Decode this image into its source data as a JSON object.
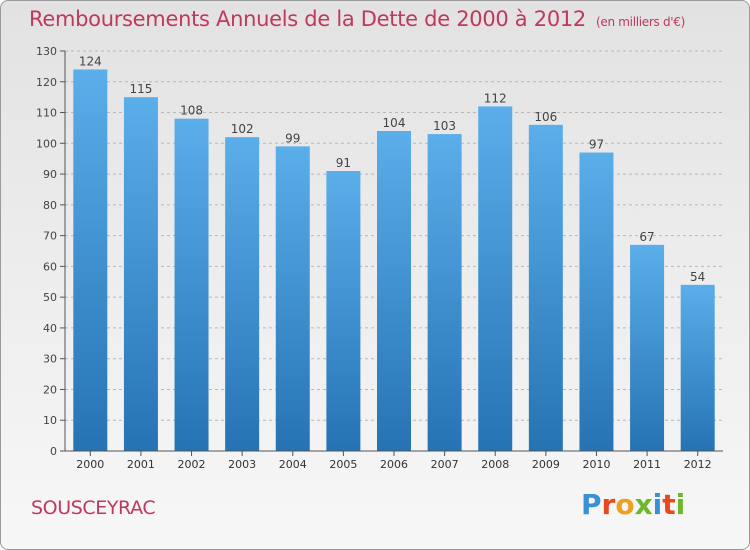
{
  "title": "Remboursements Annuels de la Dette de 2000 à 2012",
  "unit": "(en milliers d'€)",
  "commune": "SOUSCEYRAC",
  "logo": {
    "letters": [
      "P",
      "r",
      "o",
      "x",
      "i",
      "t",
      "i"
    ],
    "colors": [
      "#3b8fd4",
      "#e84a1c",
      "#f0a020",
      "#6cb82a",
      "#3b8fd4",
      "#e84a1c",
      "#6cb82a"
    ]
  },
  "colors": {
    "bar_top": "#5aaeea",
    "bar_bottom": "#2673b4",
    "title": "#c0385c"
  },
  "chart_data": {
    "type": "bar",
    "categories": [
      "2000",
      "2001",
      "2002",
      "2003",
      "2004",
      "2005",
      "2006",
      "2007",
      "2008",
      "2009",
      "2010",
      "2011",
      "2012"
    ],
    "values": [
      124,
      115,
      108,
      102,
      99,
      91,
      104,
      103,
      112,
      106,
      97,
      67,
      54
    ],
    "title": "Remboursements Annuels de la Dette de 2000 à 2012",
    "xlabel": "",
    "ylabel": "",
    "ylim": [
      0,
      130
    ],
    "yticks": [
      0,
      10,
      20,
      30,
      40,
      50,
      60,
      70,
      80,
      90,
      100,
      110,
      120,
      130
    ],
    "grid": true,
    "data_labels": true
  }
}
